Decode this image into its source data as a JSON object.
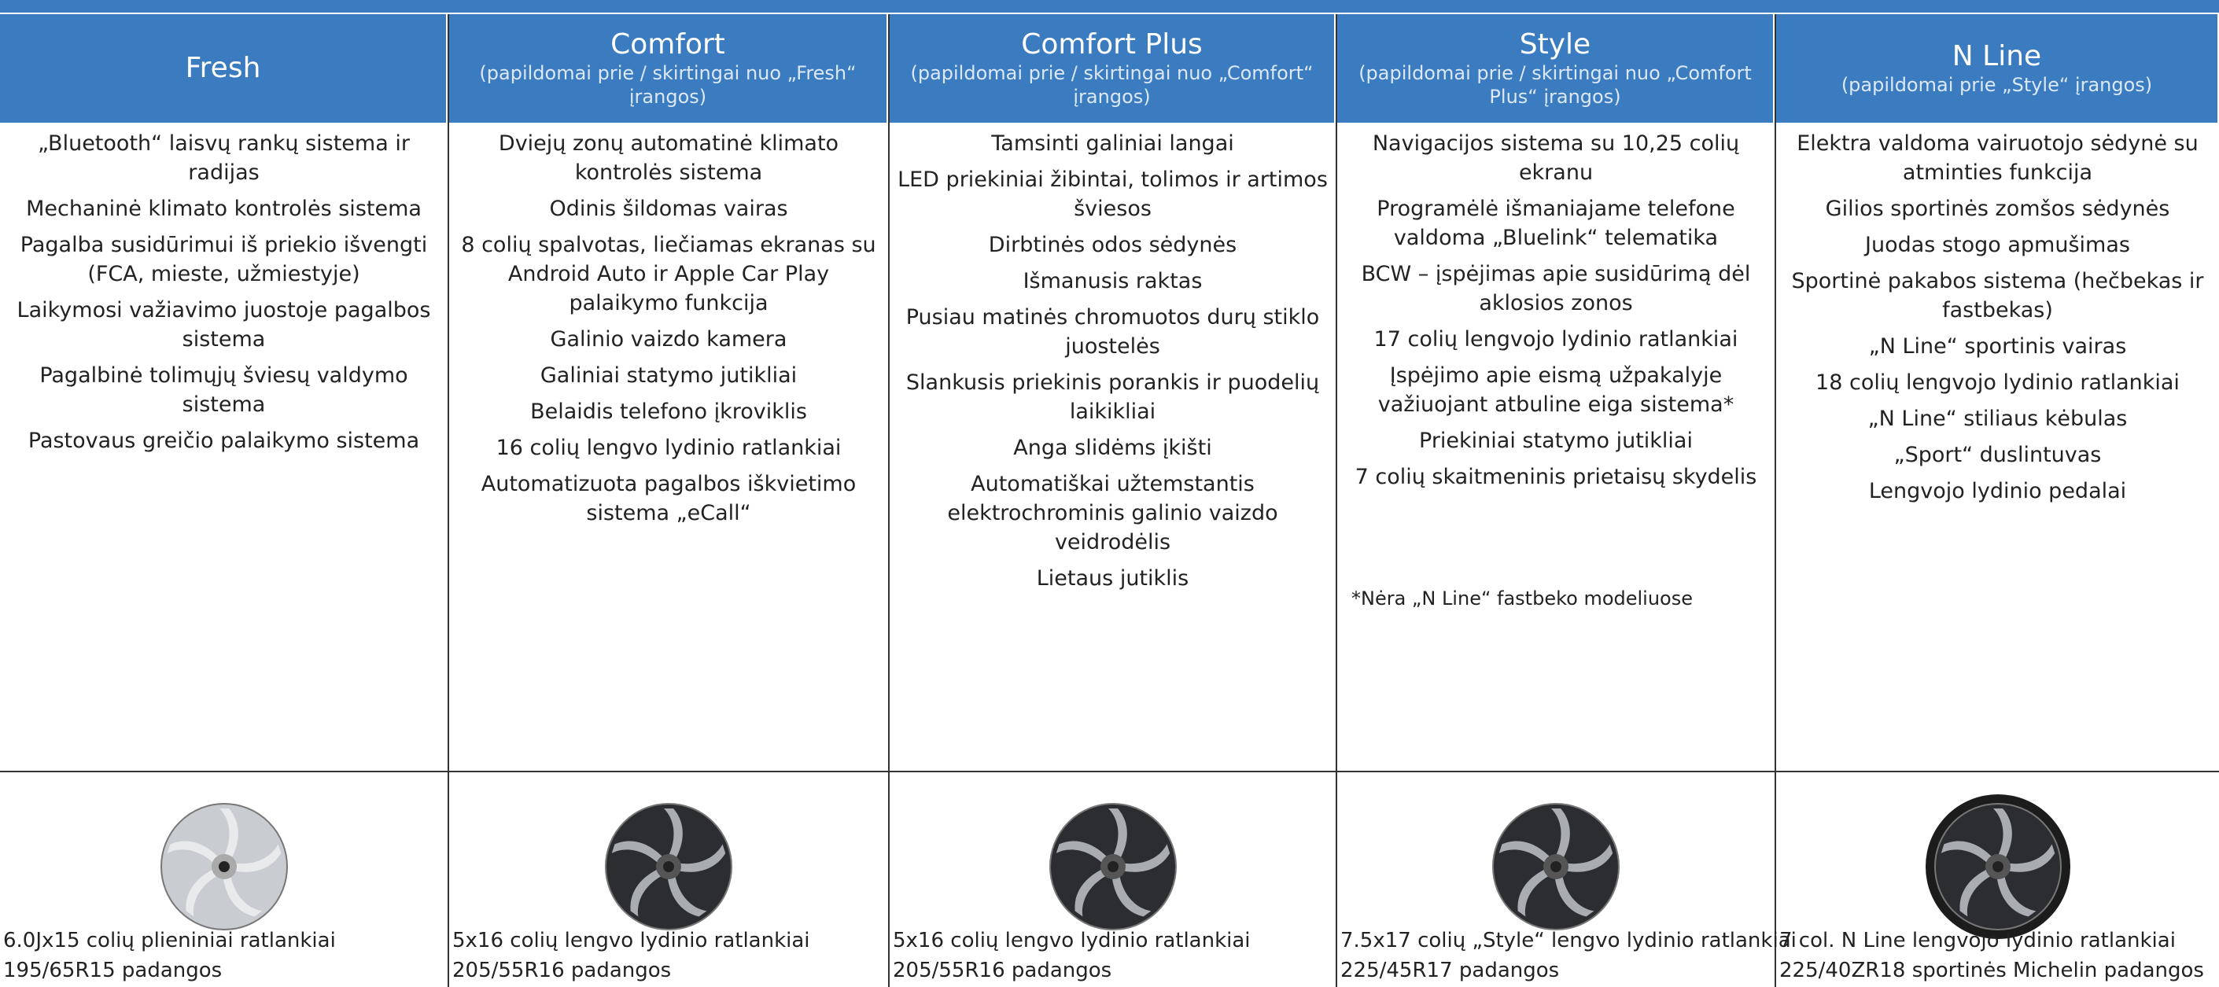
{
  "columns": [
    {
      "title": "Fresh",
      "features": [
        "„Bluetooth“ laisvų rankų sistema ir radijas",
        "Mechaninė klimato kontrolės sistema",
        "Pagalba susidūrimui iš priekio išvengti (FCA, mieste, užmiestyje)",
        "Laikymosi važiavimo juostoje pagalbos sistema",
        "Pagalbinė tolimųjų šviesų valdymo sistema",
        "Pastovaus greičio palaikymo sistema"
      ],
      "wheel": [
        "6.0Jx15 colių plieniniai ratlankiai",
        "195/65R15 padangos"
      ]
    },
    {
      "title": "Comfort",
      "subtitle": "(papildomai prie / skirtingai nuo „Fresh“ įrangos)",
      "features": [
        "Dviejų zonų automatinė klimato kontrolės sistema",
        "Odinis šildomas vairas",
        "8 colių spalvotas, liečiamas ekranas su Android Auto ir Apple Car Play palaikymo funkcija",
        "Galinio vaizdo kamera",
        "Galiniai statymo jutikliai",
        "Belaidis telefono įkroviklis",
        "16 colių lengvo lydinio ratlankiai",
        "Automatizuota pagalbos iškvietimo sistema „eCall“"
      ],
      "wheel": [
        "5x16 colių lengvo lydinio ratlankiai",
        "205/55R16 padangos"
      ]
    },
    {
      "title": "Comfort Plus",
      "subtitle": "(papildomai prie / skirtingai nuo „Comfort“ įrangos)",
      "features": [
        "Tamsinti galiniai langai",
        "LED priekiniai žibintai, tolimos ir artimos šviesos",
        "Dirbtinės odos sėdynės",
        "Išmanusis raktas",
        "Pusiau matinės chromuotos durų stiklo juostelės",
        "Slankusis priekinis porankis ir puodelių laikikliai",
        "Anga slidėms įkišti",
        "Automatiškai užtemstantis elektrochrominis galinio vaizdo veidrodėlis",
        "Lietaus jutiklis"
      ],
      "wheel": [
        "5x16 colių lengvo lydinio ratlankiai",
        "205/55R16 padangos"
      ]
    },
    {
      "title": "Style",
      "subtitle": "(papildomai prie / skirtingai nuo „Comfort Plus“ įrangos)",
      "features": [
        "Navigacijos sistema su 10,25 colių ekranu",
        "Programėlė išmaniajame telefone valdoma „Bluelink“ telematika",
        "BCW – įspėjimas apie susidūrimą dėl aklosios zonos",
        "17 colių lengvojo lydinio ratlankiai",
        "Įspėjimo apie eismą užpakalyje važiuojant atbuline eiga sistema*",
        "Priekiniai statymo jutikliai",
        "7 colių skaitmeninis prietaisų skydelis"
      ],
      "note": "*Nėra „N Line“ fastbeko modeliuose",
      "wheel": [
        "7.5x17 colių „Style“ lengvo lydinio ratlankiai",
        "225/45R17 padangos"
      ]
    },
    {
      "title": "N Line",
      "subtitle": "(papildomai prie „Style“ įrangos)",
      "features": [
        "Elektra valdoma vairuotojo sėdynė su atminties funkcija",
        "Gilios sportinės zomšos sėdynės",
        "Juodas stogo apmušimas",
        "Sportinė pakabos sistema (hečbekas ir fastbekas)",
        "„N Line“ sportinis vairas",
        "18 colių lengvojo lydinio ratlankiai",
        "„N Line“ stiliaus kėbulas",
        "„Sport“ duslintuvas",
        "Lengvojo lydinio pedalai"
      ],
      "wheel": [
        "7 col. N Line lengvojo lydinio ratlankiai",
        "225/40ZR18 sportinės Michelin padangos"
      ]
    }
  ]
}
